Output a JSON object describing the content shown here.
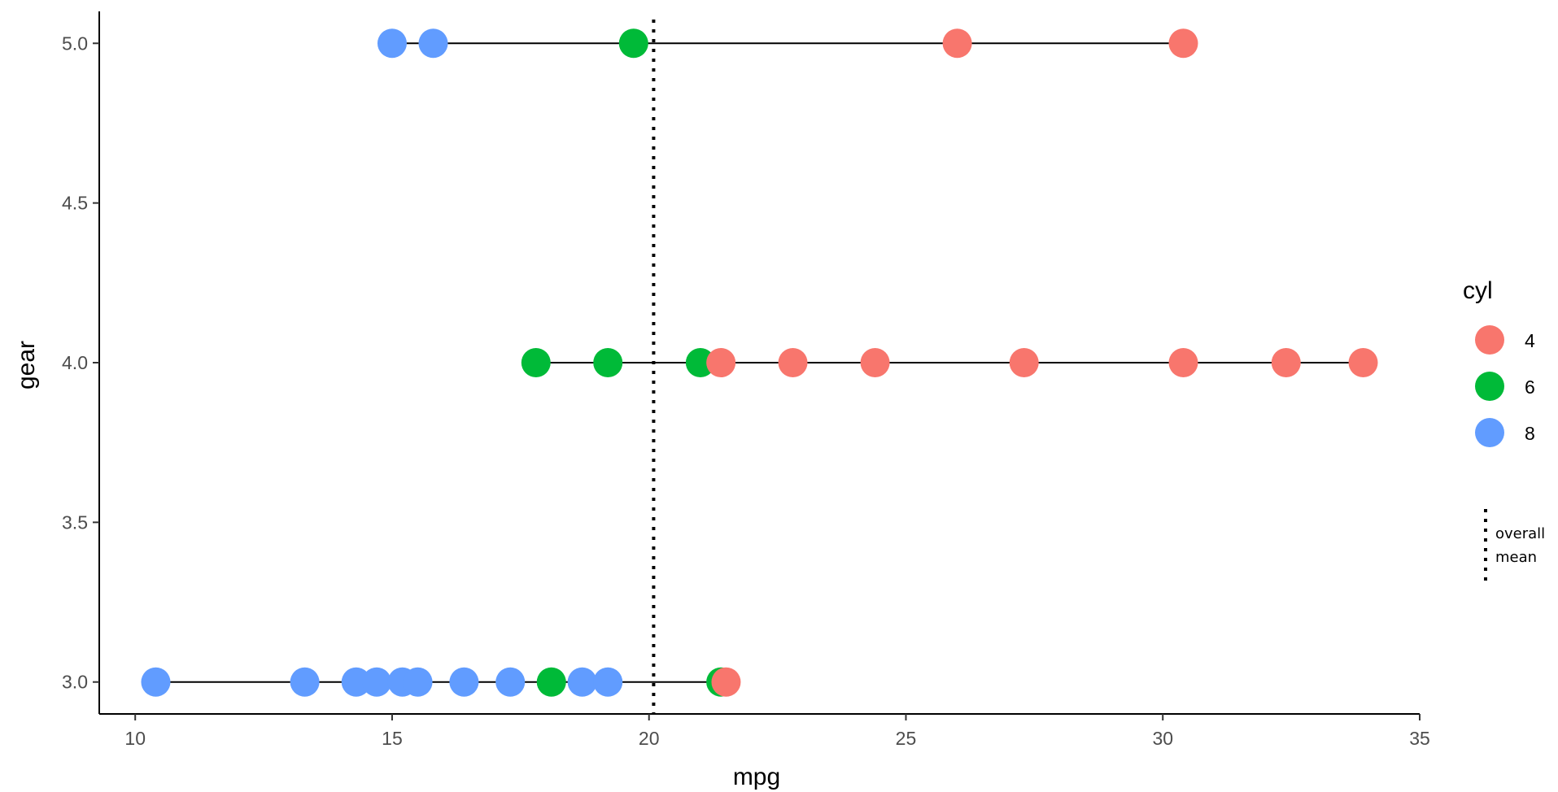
{
  "chart_data": {
    "type": "scatter",
    "xlabel": "mpg",
    "ylabel": "gear",
    "xlim": [
      9.3,
      35.0
    ],
    "ylim": [
      2.9,
      5.1
    ],
    "x_ticks": [
      "10",
      "15",
      "20",
      "25",
      "30",
      "35"
    ],
    "y_ticks": [
      "3.0",
      "3.5",
      "4.0",
      "4.5",
      "5.0"
    ],
    "grid": false,
    "legend": {
      "title": "cyl",
      "position": "right",
      "entries": [
        {
          "label": "4",
          "color": "#F8766D"
        },
        {
          "label": "6",
          "color": "#00BA38"
        },
        {
          "label": "8",
          "color": "#619CFF"
        }
      ]
    },
    "reference_line": {
      "x": 20.09,
      "style": "dotted",
      "label_lines": [
        "overall",
        "mean"
      ]
    },
    "ranges": [
      {
        "gear": 3,
        "min": 10.4,
        "max": 21.5
      },
      {
        "gear": 4,
        "min": 17.8,
        "max": 33.9
      },
      {
        "gear": 5,
        "min": 15.0,
        "max": 30.4
      }
    ],
    "series": [
      {
        "name": "4",
        "color": "#F8766D",
        "points": [
          {
            "x": 21.5,
            "y": 3
          },
          {
            "x": 21.4,
            "y": 4
          },
          {
            "x": 22.8,
            "y": 4
          },
          {
            "x": 24.4,
            "y": 4
          },
          {
            "x": 27.3,
            "y": 4
          },
          {
            "x": 30.4,
            "y": 4
          },
          {
            "x": 32.4,
            "y": 4
          },
          {
            "x": 33.9,
            "y": 4
          },
          {
            "x": 26.0,
            "y": 5
          },
          {
            "x": 30.4,
            "y": 5
          }
        ]
      },
      {
        "name": "6",
        "color": "#00BA38",
        "points": [
          {
            "x": 18.1,
            "y": 3
          },
          {
            "x": 21.4,
            "y": 3
          },
          {
            "x": 17.8,
            "y": 4
          },
          {
            "x": 19.2,
            "y": 4
          },
          {
            "x": 21.0,
            "y": 4
          },
          {
            "x": 19.7,
            "y": 5
          }
        ]
      },
      {
        "name": "8",
        "color": "#619CFF",
        "points": [
          {
            "x": 10.4,
            "y": 3
          },
          {
            "x": 13.3,
            "y": 3
          },
          {
            "x": 14.3,
            "y": 3
          },
          {
            "x": 14.7,
            "y": 3
          },
          {
            "x": 15.2,
            "y": 3
          },
          {
            "x": 15.5,
            "y": 3
          },
          {
            "x": 16.4,
            "y": 3
          },
          {
            "x": 17.3,
            "y": 3
          },
          {
            "x": 18.7,
            "y": 3
          },
          {
            "x": 19.2,
            "y": 3
          },
          {
            "x": 15.0,
            "y": 5
          },
          {
            "x": 15.8,
            "y": 5
          }
        ]
      }
    ]
  }
}
